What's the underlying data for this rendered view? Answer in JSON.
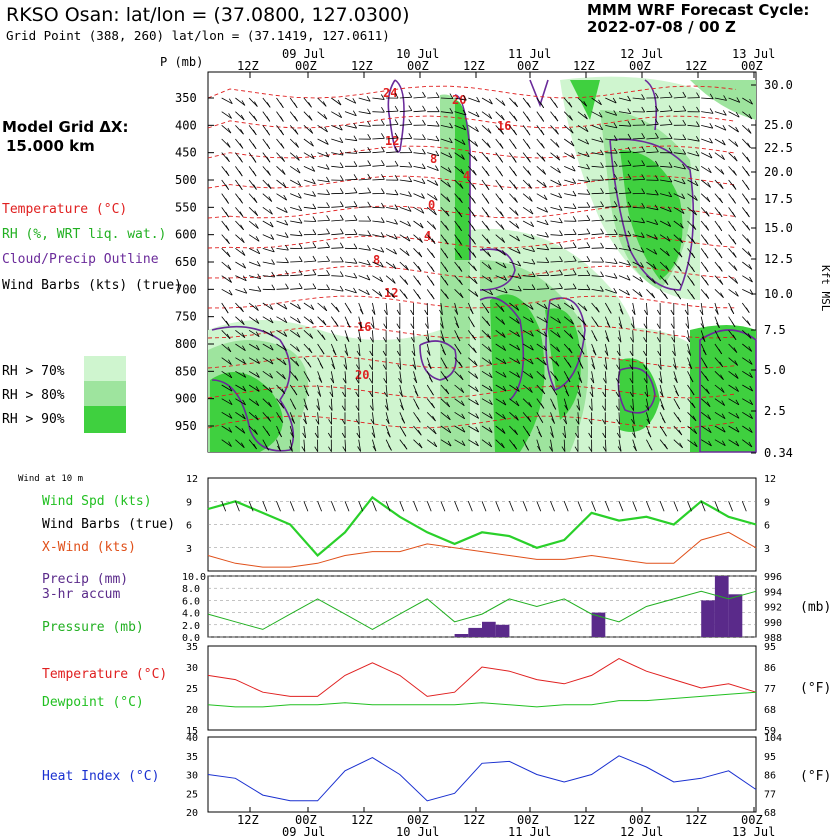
{
  "header": {
    "title": "RKSO Osan:  lat/lon = (37.0800, 127.0300)",
    "subtitle": "Grid Point (388, 260) lat/lon = (37.1419, 127.0611)",
    "cycle_line1": "MMM WRF Forecast Cycle:",
    "cycle_line2": "2022-07-08 / 00  Z"
  },
  "sidebar": {
    "grid_line1": "Model Grid ΔX:",
    "grid_line2": "15.000 km",
    "legend_temp": "Temperature (°C)",
    "legend_rh": "RH (%, WRT liq. wat.)",
    "legend_cloud": "Cloud/Precip Outline",
    "legend_barbs": "Wind Barbs (kts) (true)",
    "rh70": "RH > 70%",
    "rh80": "RH > 80%",
    "rh90": "RH > 90%"
  },
  "colors": {
    "temperature": "#e02020",
    "rh70": "#cff5cf",
    "rh80": "#9ee49e",
    "rh90": "#3fd03f",
    "cloud": "#6a2a9a",
    "wind_speed": "#2ad02a",
    "crosswind": "#e0501a",
    "precip": "#5a2a8a",
    "pressure": "#22b022",
    "temp_line": "#e02020",
    "dewpoint": "#22c022",
    "heat_index": "#1a30d0"
  },
  "time_axis": {
    "hour_labels": [
      "12Z",
      "00Z",
      "12Z",
      "00Z",
      "12Z",
      "00Z",
      "12Z",
      "00Z",
      "12Z",
      "00Z"
    ],
    "date_labels": [
      "09 Jul",
      "10 Jul",
      "11 Jul",
      "12 Jul",
      "13 Jul"
    ]
  },
  "cross_section": {
    "p_label": "P (mb)",
    "pressure_ticks": [
      "350",
      "400",
      "450",
      "500",
      "550",
      "600",
      "650",
      "700",
      "750",
      "800",
      "850",
      "900",
      "950"
    ],
    "height_ticks": [
      "30.0",
      "25.0",
      "22.5",
      "20.0",
      "17.5",
      "15.0",
      "12.5",
      "10.0",
      "7.5",
      "5.0",
      "2.5",
      "0.34"
    ],
    "height_axis_label": "Kft MSL",
    "temp_labels": [
      "24",
      "20",
      "16",
      "12",
      "8",
      "4",
      "0",
      "4",
      "8",
      "12",
      "16",
      "20"
    ]
  },
  "chart_data": [
    {
      "type": "line",
      "panel": "wind_at_10m",
      "title": "Wind at 10 m",
      "series_labels": [
        "Wind Spd (kts)",
        "Wind Barbs (true)",
        "X-Wind (kts)"
      ],
      "x_hours": [
        0,
        6,
        12,
        18,
        24,
        30,
        36,
        42,
        48,
        54,
        60,
        66,
        72,
        78,
        84,
        90,
        96,
        102,
        108,
        114,
        120
      ],
      "series": [
        {
          "name": "Wind Spd (kts)",
          "values": [
            8,
            9,
            7.5,
            6,
            2,
            5,
            9.5,
            7,
            5,
            3.5,
            5,
            4.5,
            3,
            4,
            7.5,
            6.5,
            7,
            6,
            9,
            7,
            6
          ]
        },
        {
          "name": "X-Wind (kts)",
          "values": [
            2,
            1,
            0.5,
            0.5,
            1,
            2,
            2.5,
            2.5,
            3.5,
            3,
            2.5,
            2,
            1.5,
            1.5,
            2,
            1.5,
            1,
            1,
            4,
            5,
            3
          ]
        }
      ],
      "ylim": [
        0,
        12
      ],
      "yticks": [
        "3",
        "6",
        "9",
        "12"
      ]
    },
    {
      "type": "bar",
      "panel": "precip_pressure",
      "series_labels": [
        "Precip (mm)",
        "3-hr accum",
        "Pressure (mb)"
      ],
      "precip_ticks": [
        "10.0",
        "8.0",
        "6.0",
        "4.0",
        "2.0",
        "0.0"
      ],
      "pressure_ticks": [
        "996",
        "994",
        "992",
        "990",
        "988"
      ],
      "pressure_unit": "(mb)",
      "precip_bars": [
        {
          "hour": 57,
          "value": 0.5
        },
        {
          "hour": 60,
          "value": 1.5
        },
        {
          "hour": 63,
          "value": 2.5
        },
        {
          "hour": 66,
          "value": 2.0
        },
        {
          "hour": 87,
          "value": 4.0
        },
        {
          "hour": 111,
          "value": 6.0
        },
        {
          "hour": 114,
          "value": 10.0
        },
        {
          "hour": 117,
          "value": 7.0
        }
      ],
      "pressure_values": [
        991,
        990,
        989,
        991,
        993,
        991,
        989,
        991,
        993,
        990,
        991,
        993,
        992,
        993,
        991,
        990,
        992,
        993,
        994,
        993,
        994
      ],
      "pressure_ylim": [
        988,
        996
      ],
      "precip_ylim": [
        0,
        10
      ]
    },
    {
      "type": "line",
      "panel": "temperature",
      "series_labels": [
        "Temperature (°C)",
        "Dewpoint (°C)"
      ],
      "c_ticks": [
        "35",
        "30",
        "25",
        "20",
        "15"
      ],
      "f_ticks": [
        "95",
        "86",
        "77",
        "68",
        "59"
      ],
      "f_unit": "(°F)",
      "series": [
        {
          "name": "Temperature (°C)",
          "values": [
            28,
            27,
            24,
            23,
            23,
            28,
            31,
            28,
            23,
            24,
            30,
            29,
            27,
            26,
            28,
            32,
            29,
            27,
            25,
            26,
            24
          ]
        },
        {
          "name": "Dewpoint (°C)",
          "values": [
            21,
            20.5,
            20.5,
            21,
            21,
            21.5,
            21,
            21,
            21,
            21,
            21.5,
            21,
            20.5,
            21,
            21,
            22,
            22,
            22.5,
            23,
            23.5,
            24
          ]
        }
      ],
      "ylim": [
        15,
        35
      ]
    },
    {
      "type": "line",
      "panel": "heat_index",
      "series_labels": [
        "Heat Index (°C)"
      ],
      "c_ticks": [
        "40",
        "35",
        "30",
        "25",
        "20"
      ],
      "f_ticks": [
        "104",
        "95",
        "86",
        "77",
        "68"
      ],
      "f_unit": "(°F)",
      "series": [
        {
          "name": "Heat Index (°C)",
          "values": [
            30,
            29,
            24.5,
            23,
            23,
            31,
            34.5,
            30,
            23,
            25,
            33,
            33.5,
            30,
            28,
            30,
            35,
            32,
            28,
            29,
            31,
            26
          ]
        }
      ],
      "ylim": [
        20,
        40
      ]
    }
  ]
}
